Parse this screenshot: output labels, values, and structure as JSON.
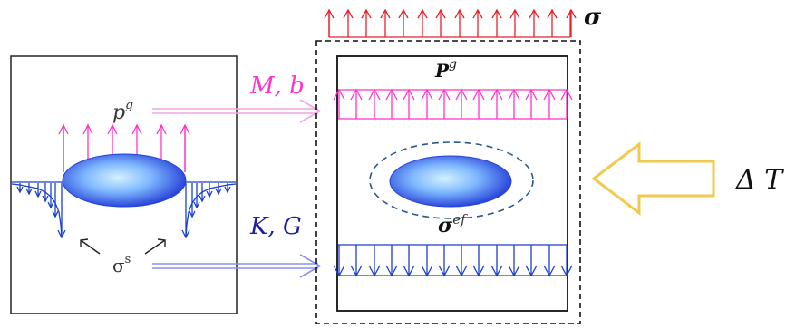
{
  "labels": {
    "sigma": "σ",
    "p_left": "p",
    "p_left_sup": "g",
    "p_right": "P",
    "p_right_sup": "g",
    "mb": "M, b",
    "kg": "K, G",
    "sigma_s": "σ",
    "sigma_s_sup": "s",
    "sigma_ef": "σ",
    "sigma_ef_sup": "ef",
    "delta_t": "Δ T"
  },
  "colors": {
    "red": "#e8202a",
    "magenta": "#ff33cc",
    "pink_arrow": "#f2a3e6",
    "blue": "#1a3fd0",
    "blue_arrow": "#8c90f0",
    "navy_label": "#1f1f9e",
    "dashed_ellipse": "#2a5a8c",
    "yellow": "#f2c94c",
    "ellipse_center": "#bfe7ff",
    "ellipse_edge": "#2343d8"
  }
}
